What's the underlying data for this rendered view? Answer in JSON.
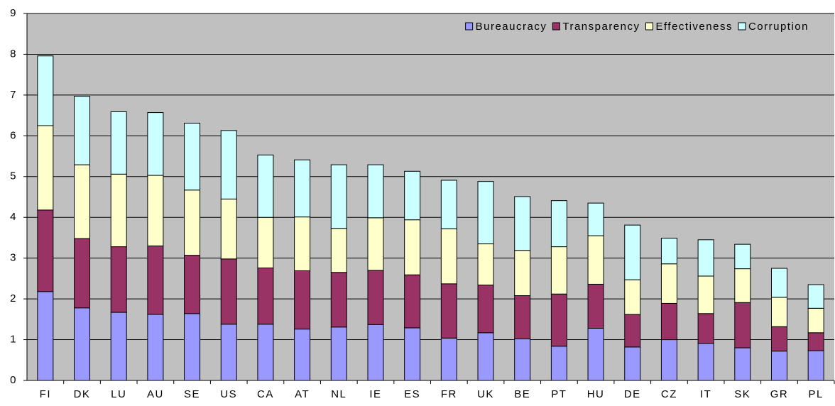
{
  "chart_data": {
    "type": "bar",
    "stacked": true,
    "categories": [
      "FI",
      "DK",
      "LU",
      "AU",
      "SE",
      "US",
      "CA",
      "AT",
      "NL",
      "IE",
      "ES",
      "FR",
      "UK",
      "BE",
      "PT",
      "HU",
      "DE",
      "CZ",
      "IT",
      "SK",
      "GR",
      "PL"
    ],
    "series": [
      {
        "name": "Bureaucracy",
        "color": "#9999ff",
        "values": [
          2.18,
          1.78,
          1.67,
          1.62,
          1.64,
          1.38,
          1.38,
          1.26,
          1.31,
          1.37,
          1.29,
          1.04,
          1.17,
          1.02,
          0.84,
          1.28,
          0.82,
          1.0,
          0.91,
          0.8,
          0.72,
          0.73
        ]
      },
      {
        "name": "Transparency",
        "color": "#993366",
        "values": [
          2.0,
          1.7,
          1.61,
          1.68,
          1.43,
          1.6,
          1.38,
          1.43,
          1.34,
          1.33,
          1.3,
          1.33,
          1.17,
          1.06,
          1.28,
          1.08,
          0.8,
          0.89,
          0.73,
          1.11,
          0.6,
          0.44
        ]
      },
      {
        "name": "Effectiveness",
        "color": "#ffffcc",
        "values": [
          2.07,
          1.81,
          1.78,
          1.73,
          1.6,
          1.47,
          1.24,
          1.32,
          1.08,
          1.29,
          1.35,
          1.35,
          1.01,
          1.11,
          1.16,
          1.19,
          0.85,
          0.97,
          0.92,
          0.83,
          0.72,
          0.6
        ]
      },
      {
        "name": "Corruption",
        "color": "#ccffff",
        "values": [
          1.71,
          1.68,
          1.53,
          1.54,
          1.64,
          1.68,
          1.53,
          1.4,
          1.56,
          1.3,
          1.19,
          1.19,
          1.53,
          1.32,
          1.13,
          0.8,
          1.34,
          0.63,
          0.89,
          0.6,
          0.71,
          0.58
        ]
      }
    ],
    "ylim": [
      0,
      9
    ],
    "yticks": [
      0,
      1,
      2,
      3,
      4,
      5,
      6,
      7,
      8,
      9
    ],
    "grid": true,
    "legend": "upper right",
    "background": "#c0c0c0"
  }
}
